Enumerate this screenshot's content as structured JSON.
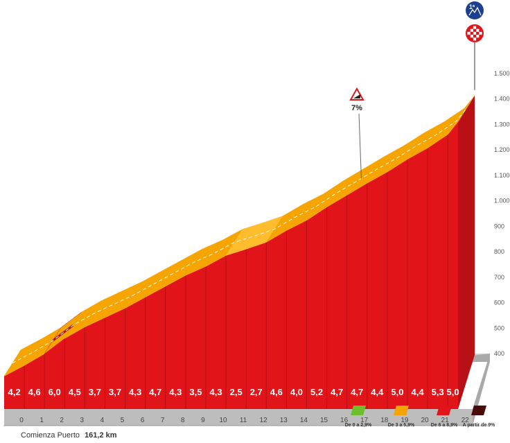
{
  "chart_data": {
    "type": "area",
    "x_unit": "km",
    "x": [
      0,
      1,
      2,
      3,
      4,
      5,
      6,
      7,
      8,
      9,
      10,
      11,
      12,
      13,
      14,
      15,
      16,
      17,
      18,
      19,
      20,
      21,
      22
    ],
    "y_ticks": [
      400,
      500,
      600,
      700,
      800,
      900,
      1000,
      1100,
      1200,
      1300,
      1400,
      1500
    ],
    "y_tick_labels": [
      "400",
      "500",
      "600",
      "700",
      "800",
      "900",
      "1.000",
      "1.100",
      "1.200",
      "1.300",
      "1.400",
      "1.500"
    ],
    "ylim": [
      400,
      1500
    ],
    "elevation": [
      420,
      462,
      508,
      568,
      613,
      650,
      687,
      730,
      773,
      816,
      851,
      894,
      919,
      946,
      992,
      1032,
      1084,
      1131,
      1178,
      1222,
      1272,
      1316,
      1369,
      1419
    ],
    "gradients_pct": [
      "4,2",
      "4,6",
      "6,0",
      "4,5",
      "3,7",
      "3,7",
      "4,3",
      "4,7",
      "4,3",
      "3,5",
      "4,3",
      "2,5",
      "2,7",
      "4,6",
      "4,0",
      "5,2",
      "4,7",
      "4,7",
      "4,4",
      "5,0",
      "4,4",
      "5,3",
      "5,0"
    ],
    "gradient_category": [
      2,
      2,
      3,
      2,
      2,
      2,
      2,
      2,
      2,
      2,
      2,
      1,
      1,
      2,
      2,
      2,
      2,
      2,
      2,
      2,
      2,
      2,
      2
    ],
    "annotations": [
      {
        "label": "7%",
        "icon": "steep-gradient-warning-icon",
        "x": 17.3
      }
    ],
    "start_label": "Comienza Puerto",
    "start_km": "161,2 km",
    "finish_icons": [
      "first-category-mountain-icon",
      "finish-checkered-flag-icon"
    ],
    "finish_category_label": "1ª",
    "legend": [
      {
        "label": "De 0 a 2,9%",
        "color": "#6cbe2d"
      },
      {
        "label": "De 3 a 5,9%",
        "color": "#f6a400"
      },
      {
        "label": "De 6 a 8,9%",
        "color": "#e01419"
      },
      {
        "label": "A partir de 9%",
        "color": "#4a0a0a"
      }
    ],
    "colors": {
      "wall": "#e01419",
      "wall_dark": "#b81014",
      "top_band": "#f6a400",
      "top_band_light": "#ffbd2e",
      "base": "#cfcfcf",
      "base_dark": "#a9a9a9",
      "badge_blue": "#1d3f8f"
    }
  }
}
